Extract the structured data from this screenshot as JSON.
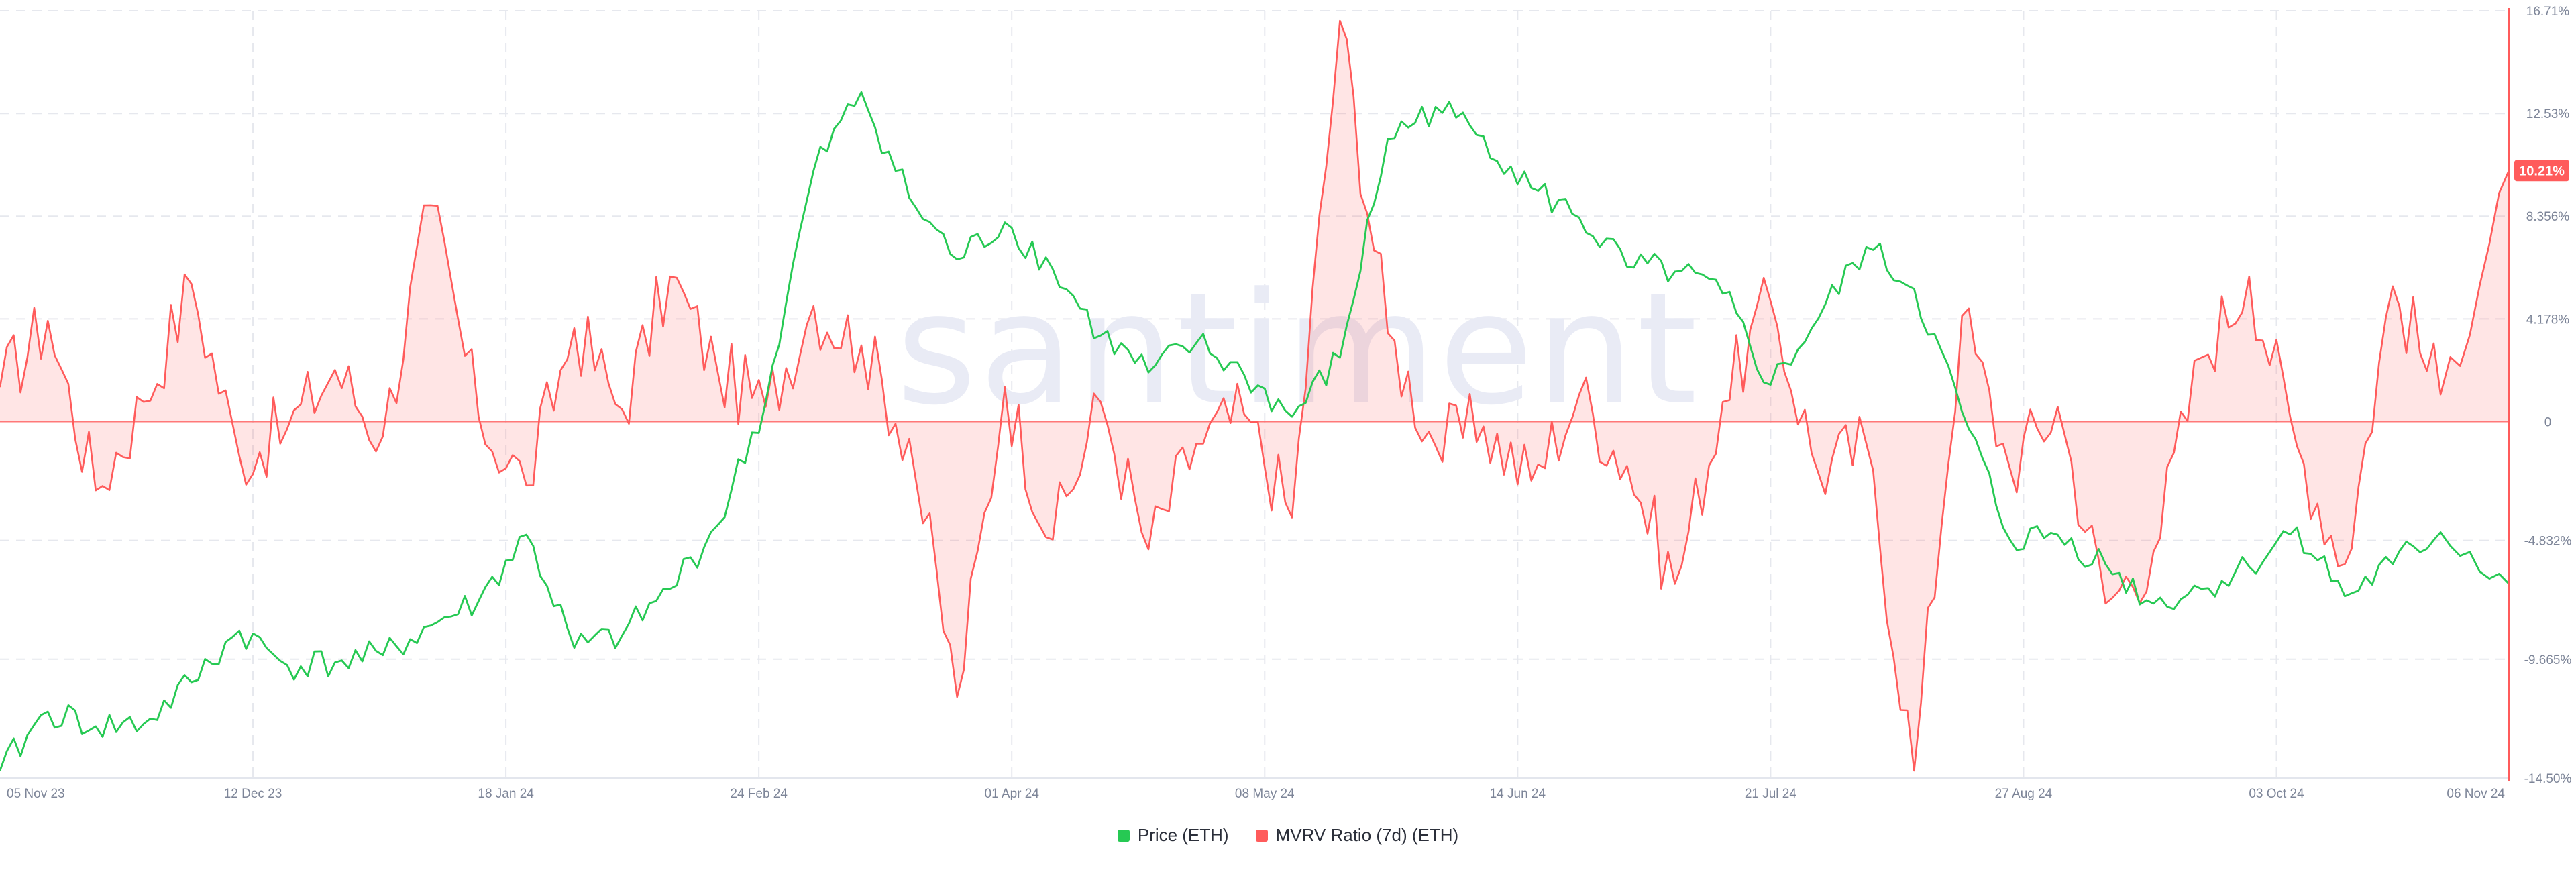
{
  "watermark": "santiment",
  "badge_label": "10.21%",
  "legend": [
    {
      "label": "Price (ETH)",
      "color": "#26c953"
    },
    {
      "label": "MVRV Ratio (7d) (ETH)",
      "color": "#ff5b5b"
    }
  ],
  "chart_data": {
    "type": "line",
    "x_start": "2023-11-05",
    "x_end": "2024-11-06",
    "x_ticks": [
      "05 Nov 23",
      "12 Dec 23",
      "18 Jan 24",
      "24 Feb 24",
      "01 Apr 24",
      "08 May 24",
      "14 Jun 24",
      "21 Jul 24",
      "27 Aug 24",
      "03 Oct 24",
      "06 Nov 24"
    ],
    "y_right": {
      "series": "MVRV Ratio (7d) (ETH)",
      "unit": "%",
      "range": [
        -14.5,
        16.71
      ],
      "ticks": [
        "16.71%",
        "12.53%",
        "8.356%",
        "4.178%",
        "0",
        "-4.832%",
        "-9.665%",
        "-14.50%"
      ],
      "zero_baseline": true,
      "fill_to_zero": true
    },
    "grid": true,
    "legend_position": "bottom-center",
    "series": [
      {
        "name": "Price (ETH)",
        "color": "#26c953",
        "axis": "right-scale-shared",
        "x": [
          "2023-11-05",
          "2023-11-12",
          "2023-11-19",
          "2023-11-26",
          "2023-12-03",
          "2023-12-10",
          "2023-12-17",
          "2023-12-24",
          "2023-12-31",
          "2024-01-07",
          "2024-01-14",
          "2024-01-21",
          "2024-01-28",
          "2024-02-04",
          "2024-02-11",
          "2024-02-18",
          "2024-02-25",
          "2024-03-03",
          "2024-03-10",
          "2024-03-17",
          "2024-03-24",
          "2024-03-31",
          "2024-04-07",
          "2024-04-14",
          "2024-04-21",
          "2024-04-28",
          "2024-05-05",
          "2024-05-12",
          "2024-05-19",
          "2024-05-26",
          "2024-06-02",
          "2024-06-09",
          "2024-06-16",
          "2024-06-23",
          "2024-06-30",
          "2024-07-07",
          "2024-07-14",
          "2024-07-21",
          "2024-07-28",
          "2024-08-04",
          "2024-08-11",
          "2024-08-18",
          "2024-08-25",
          "2024-09-01",
          "2024-09-08",
          "2024-09-15",
          "2024-09-22",
          "2024-09-29",
          "2024-10-06",
          "2024-10-13",
          "2024-10-20",
          "2024-10-27",
          "2024-11-06"
        ],
        "y": [
          -14.2,
          -11.8,
          -12.4,
          -12.3,
          -10.6,
          -8.5,
          -9.9,
          -9.8,
          -9.5,
          -8.3,
          -7.3,
          -4.6,
          -9.2,
          -8.7,
          -6.8,
          -4.2,
          0.8,
          10.2,
          13.4,
          9.1,
          6.6,
          8.1,
          6.2,
          3.5,
          2.0,
          3.2,
          1.9,
          0.2,
          2.6,
          11.5,
          12.8,
          11.6,
          9.5,
          8.3,
          6.3,
          6.1,
          5.2,
          1.5,
          4.2,
          7.1,
          5.4,
          0.4,
          -4.8,
          -4.6,
          -5.8,
          -7.4,
          -6.8,
          -5.9,
          -4.3,
          -7.1,
          -5.8,
          -4.5,
          -6.6
        ],
        "approximate": true
      },
      {
        "name": "MVRV Ratio (7d) (ETH)",
        "color": "#ff5b5b",
        "x": [
          "2023-11-05",
          "2023-11-12",
          "2023-11-19",
          "2023-11-26",
          "2023-12-03",
          "2023-12-10",
          "2023-12-17",
          "2023-12-24",
          "2023-12-31",
          "2024-01-07",
          "2024-01-14",
          "2024-01-21",
          "2024-01-28",
          "2024-02-04",
          "2024-02-11",
          "2024-02-18",
          "2024-02-25",
          "2024-03-03",
          "2024-03-10",
          "2024-03-17",
          "2024-03-24",
          "2024-03-31",
          "2024-04-07",
          "2024-04-14",
          "2024-04-21",
          "2024-04-28",
          "2024-05-05",
          "2024-05-12",
          "2024-05-19",
          "2024-05-26",
          "2024-06-02",
          "2024-06-09",
          "2024-06-16",
          "2024-06-23",
          "2024-06-30",
          "2024-07-07",
          "2024-07-14",
          "2024-07-21",
          "2024-07-28",
          "2024-08-04",
          "2024-08-11",
          "2024-08-18",
          "2024-08-25",
          "2024-09-01",
          "2024-09-08",
          "2024-09-15",
          "2024-09-22",
          "2024-09-29",
          "2024-10-06",
          "2024-10-13",
          "2024-10-20",
          "2024-10-27",
          "2024-11-06"
        ],
        "y": [
          1.4,
          4.1,
          -2.8,
          0.8,
          5.6,
          -1.4,
          -0.3,
          2.1,
          -0.6,
          8.8,
          0.2,
          -2.6,
          3.8,
          0.5,
          5.9,
          2.0,
          0.6,
          4.7,
          3.1,
          -0.7,
          -11.2,
          1.4,
          -4.8,
          0.8,
          -5.2,
          -0.9,
          0.3,
          -3.9,
          16.3,
          3.6,
          -1.0,
          -0.2,
          -2.4,
          1.1,
          -1.8,
          -6.6,
          0.8,
          4.9,
          -2.1,
          -0.9,
          -14.2,
          4.3,
          -1.9,
          0.6,
          -7.4,
          -5.3,
          2.6,
          5.9,
          -1.0,
          -5.8,
          5.5,
          1.1,
          10.21
        ],
        "approximate": true
      }
    ]
  }
}
